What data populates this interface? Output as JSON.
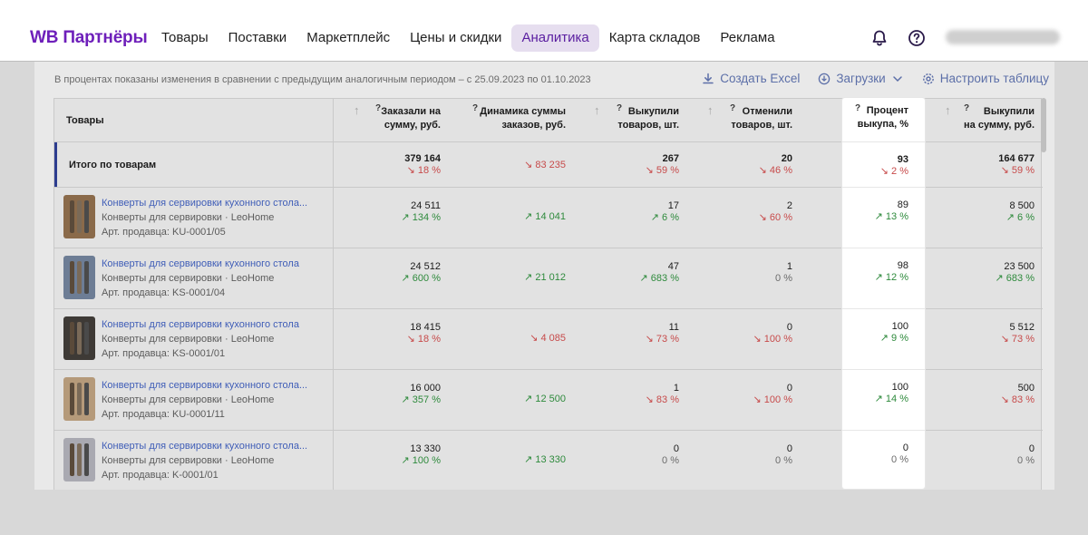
{
  "header": {
    "logo": "WB Партнёры",
    "nav": [
      "Товары",
      "Поставки",
      "Маркетплейс",
      "Цены и скидки",
      "Аналитика",
      "Карта складов",
      "Реклама"
    ],
    "active_nav": "Аналитика"
  },
  "notice": "В процентах показаны изменения в сравнении с предыдущим аналогичным периодом – с 25.09.2023 по 01.10.2023",
  "toolbar": {
    "excel": "Создать Excel",
    "downloads": "Загрузки",
    "configure": "Настроить таблицу"
  },
  "table": {
    "product_col": "Товары",
    "total_label": "Итого по товарам",
    "columns": [
      "Заказали на\nсумму, руб.",
      "Динамика суммы\nзаказов, руб.",
      "Выкупили\nтоваров, шт.",
      "Отменили\nтоваров, шт.",
      "Процент\nвыкупа, %",
      "Выкупили\nна сумму, руб."
    ],
    "q_mark": "?",
    "sort_arrow": "↑",
    "total": [
      {
        "value": "379 164",
        "delta": "18 %",
        "dir": "down"
      },
      {
        "value": "",
        "delta": "83 235",
        "dir": "down"
      },
      {
        "value": "267",
        "delta": "59 %",
        "dir": "down"
      },
      {
        "value": "20",
        "delta": "46 %",
        "dir": "down"
      },
      {
        "value": "93",
        "delta": "2 %",
        "dir": "down"
      },
      {
        "value": "164 677",
        "delta": "59 %",
        "dir": "down"
      }
    ],
    "rows": [
      {
        "title": "Конверты для сервировки кухонного стола...",
        "subtitle": "Конверты для сервировки · LeoHome",
        "article": "Арт. продавца: KU-0001/05",
        "thumb_bg": "#8a6a4a",
        "cells": [
          {
            "value": "24 511",
            "delta": "134 %",
            "dir": "up"
          },
          {
            "value": "",
            "delta": "14 041",
            "dir": "up"
          },
          {
            "value": "17",
            "delta": "6 %",
            "dir": "up"
          },
          {
            "value": "2",
            "delta": "60 %",
            "dir": "down"
          },
          {
            "value": "89",
            "delta": "13 %",
            "dir": "up"
          },
          {
            "value": "8 500",
            "delta": "6 %",
            "dir": "up"
          }
        ]
      },
      {
        "title": "Конверты для сервировки кухонного стола",
        "subtitle": "Конверты для сервировки · LeoHome",
        "article": "Арт. продавца: KS-0001/04",
        "thumb_bg": "#6d7d95",
        "cells": [
          {
            "value": "24 512",
            "delta": "600 %",
            "dir": "up"
          },
          {
            "value": "",
            "delta": "21 012",
            "dir": "up"
          },
          {
            "value": "47",
            "delta": "683 %",
            "dir": "up"
          },
          {
            "value": "1",
            "delta": "0 %",
            "dir": "zero"
          },
          {
            "value": "98",
            "delta": "12 %",
            "dir": "up"
          },
          {
            "value": "23 500",
            "delta": "683 %",
            "dir": "up"
          }
        ]
      },
      {
        "title": "Конверты для сервировки кухонного стола",
        "subtitle": "Конверты для сервировки · LeoHome",
        "article": "Арт. продавца: KS-0001/01",
        "thumb_bg": "#3e3a36",
        "cells": [
          {
            "value": "18 415",
            "delta": "18 %",
            "dir": "down"
          },
          {
            "value": "",
            "delta": "4 085",
            "dir": "down"
          },
          {
            "value": "11",
            "delta": "73 %",
            "dir": "down"
          },
          {
            "value": "0",
            "delta": "100 %",
            "dir": "down"
          },
          {
            "value": "100",
            "delta": "9 %",
            "dir": "up"
          },
          {
            "value": "5 512",
            "delta": "73 %",
            "dir": "down"
          }
        ]
      },
      {
        "title": "Конверты для сервировки кухонного стола...",
        "subtitle": "Конверты для сервировки · LeoHome",
        "article": "Арт. продавца: KU-0001/11",
        "thumb_bg": "#b59a7a",
        "cells": [
          {
            "value": "16 000",
            "delta": "357 %",
            "dir": "up"
          },
          {
            "value": "",
            "delta": "12 500",
            "dir": "up"
          },
          {
            "value": "1",
            "delta": "83 %",
            "dir": "down"
          },
          {
            "value": "0",
            "delta": "100 %",
            "dir": "down"
          },
          {
            "value": "100",
            "delta": "14 %",
            "dir": "up"
          },
          {
            "value": "500",
            "delta": "83 %",
            "dir": "down"
          }
        ]
      },
      {
        "title": "Конверты для сервировки кухонного стола...",
        "subtitle": "Конверты для сервировки · LeoHome",
        "article": "Арт. продавца: K-0001/01",
        "thumb_bg": "#a9a9b1",
        "cells": [
          {
            "value": "13 330",
            "delta": "100 %",
            "dir": "up"
          },
          {
            "value": "",
            "delta": "13 330",
            "dir": "up"
          },
          {
            "value": "0",
            "delta": "0 %",
            "dir": "zero"
          },
          {
            "value": "0",
            "delta": "0 %",
            "dir": "zero"
          },
          {
            "value": "0",
            "delta": "0 %",
            "dir": "zero"
          },
          {
            "value": "0",
            "delta": "0 %",
            "dir": "zero"
          }
        ]
      }
    ]
  },
  "colors": {
    "brand": "#6e1fba",
    "link": "#3f5db7",
    "up": "#2e8a3c",
    "down": "#c74a4a",
    "accent": "#2d3d8f"
  }
}
